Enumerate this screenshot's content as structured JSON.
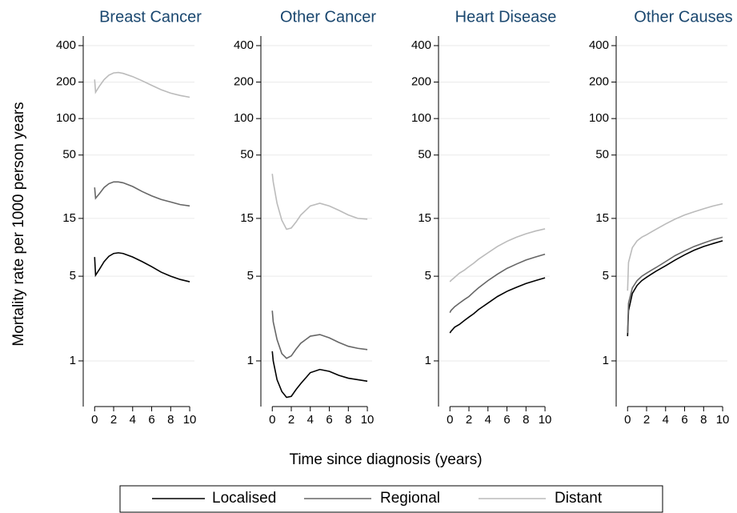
{
  "ylabel": "Mortality rate per 1000 person years",
  "xlabel": "Time since diagnosis (years)",
  "chart_data": [
    {
      "type": "line",
      "title": "Breast Cancer",
      "x": [
        0,
        0.1,
        0.5,
        1,
        1.5,
        2,
        2.5,
        3,
        4,
        5,
        6,
        7,
        8,
        9,
        10
      ],
      "series": [
        {
          "name": "Localised",
          "color": "#000000",
          "values": [
            7.2,
            5.1,
            5.7,
            6.6,
            7.3,
            7.7,
            7.8,
            7.7,
            7.2,
            6.6,
            6.0,
            5.4,
            5.0,
            4.7,
            4.5
          ]
        },
        {
          "name": "Regional",
          "color": "#666666",
          "values": [
            27,
            22,
            24,
            27,
            29,
            30,
            30,
            29.5,
            27.5,
            25,
            23,
            21.5,
            20.5,
            19.5,
            19
          ]
        },
        {
          "name": "Distant",
          "color": "#bbbbbb",
          "values": [
            210,
            165,
            185,
            210,
            228,
            238,
            240,
            236,
            222,
            205,
            188,
            173,
            162,
            155,
            150
          ]
        }
      ],
      "xlim": [
        -1.2,
        10.5
      ],
      "xticks": [
        0,
        2,
        4,
        6,
        8,
        10
      ],
      "ylim": [
        0.42,
        480
      ],
      "yticks": [
        1,
        5,
        15,
        50,
        100,
        200,
        400
      ],
      "ylog": true,
      "grid": true
    },
    {
      "type": "line",
      "title": "Other Cancer",
      "x": [
        0,
        0.1,
        0.5,
        1,
        1.5,
        2,
        2.5,
        3,
        4,
        5,
        6,
        7,
        8,
        9,
        10
      ],
      "series": [
        {
          "name": "Localised",
          "color": "#000000",
          "values": [
            1.2,
            1.0,
            0.7,
            0.56,
            0.5,
            0.51,
            0.58,
            0.65,
            0.8,
            0.85,
            0.82,
            0.76,
            0.72,
            0.7,
            0.68
          ]
        },
        {
          "name": "Regional",
          "color": "#666666",
          "values": [
            2.6,
            2.1,
            1.5,
            1.15,
            1.05,
            1.1,
            1.25,
            1.4,
            1.6,
            1.65,
            1.55,
            1.42,
            1.32,
            1.27,
            1.24
          ]
        },
        {
          "name": "Distant",
          "color": "#bbbbbb",
          "values": [
            35,
            30,
            20,
            14.5,
            12.2,
            12.5,
            14,
            16,
            19,
            20,
            19,
            17.5,
            16,
            15,
            14.8
          ]
        }
      ],
      "xlim": [
        -1.2,
        10.5
      ],
      "xticks": [
        0,
        2,
        4,
        6,
        8,
        10
      ],
      "ylim": [
        0.42,
        480
      ],
      "yticks": [
        1,
        5,
        15,
        50,
        100,
        200,
        400
      ],
      "ylog": true,
      "grid": true
    },
    {
      "type": "line",
      "title": "Heart Disease",
      "x": [
        0,
        0.1,
        0.5,
        1,
        1.5,
        2,
        2.5,
        3,
        4,
        5,
        6,
        7,
        8,
        9,
        10
      ],
      "series": [
        {
          "name": "Localised",
          "color": "#000000",
          "values": [
            1.7,
            1.75,
            1.9,
            2.0,
            2.15,
            2.3,
            2.45,
            2.65,
            3.0,
            3.4,
            3.75,
            4.05,
            4.35,
            4.6,
            4.85
          ]
        },
        {
          "name": "Regional",
          "color": "#666666",
          "values": [
            2.5,
            2.6,
            2.8,
            3.0,
            3.2,
            3.4,
            3.7,
            4.0,
            4.6,
            5.2,
            5.8,
            6.3,
            6.8,
            7.2,
            7.6
          ]
        },
        {
          "name": "Distant",
          "color": "#bbbbbb",
          "values": [
            4.5,
            4.6,
            4.9,
            5.3,
            5.6,
            6.0,
            6.4,
            6.9,
            7.8,
            8.8,
            9.7,
            10.5,
            11.2,
            11.8,
            12.3
          ]
        }
      ],
      "xlim": [
        -1.2,
        10.5
      ],
      "xticks": [
        0,
        2,
        4,
        6,
        8,
        10
      ],
      "ylim": [
        0.42,
        480
      ],
      "yticks": [
        1,
        5,
        15,
        50,
        100,
        200,
        400
      ],
      "ylog": true,
      "grid": true
    },
    {
      "type": "line",
      "title": "Other Causes",
      "x": [
        0,
        0.1,
        0.5,
        1,
        1.5,
        2,
        2.5,
        3,
        4,
        5,
        6,
        7,
        8,
        9,
        10
      ],
      "series": [
        {
          "name": "Localised",
          "color": "#000000",
          "values": [
            1.6,
            2.6,
            3.6,
            4.2,
            4.6,
            4.9,
            5.2,
            5.5,
            6.1,
            6.8,
            7.5,
            8.2,
            8.8,
            9.3,
            9.8
          ]
        },
        {
          "name": "Regional",
          "color": "#666666",
          "values": [
            1.7,
            3.0,
            4.0,
            4.6,
            5.0,
            5.3,
            5.6,
            5.9,
            6.6,
            7.4,
            8.1,
            8.8,
            9.4,
            10.0,
            10.5
          ]
        },
        {
          "name": "Distant",
          "color": "#bbbbbb",
          "values": [
            3.8,
            6.5,
            8.6,
            9.8,
            10.5,
            11,
            11.6,
            12.2,
            13.5,
            14.8,
            16,
            17,
            18,
            19,
            19.8
          ]
        }
      ],
      "xlim": [
        -1.2,
        10.5
      ],
      "xticks": [
        0,
        2,
        4,
        6,
        8,
        10
      ],
      "ylim": [
        0.42,
        480
      ],
      "yticks": [
        1,
        5,
        15,
        50,
        100,
        200,
        400
      ],
      "ylog": true,
      "grid": true
    }
  ]
}
